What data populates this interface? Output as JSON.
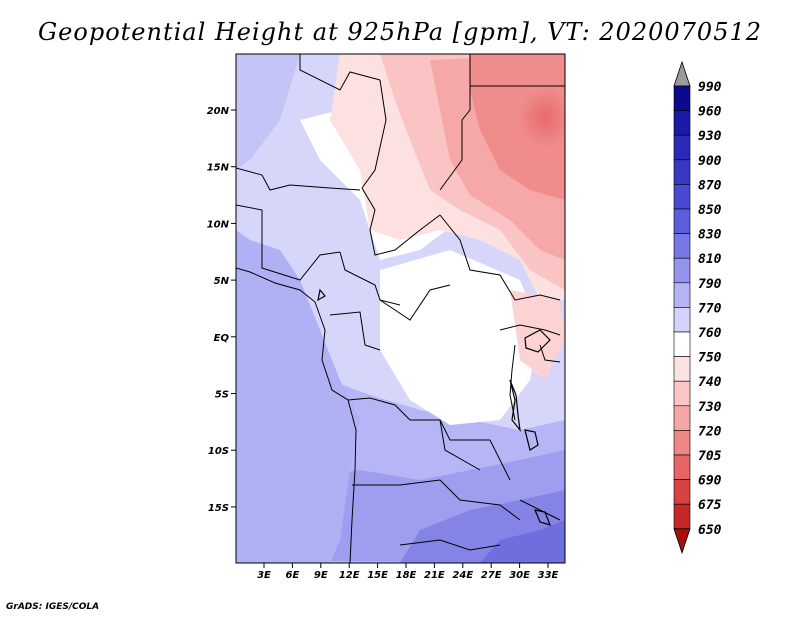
{
  "title": "Geopotential Height at 925hPa [gpm], VT: 2020070512",
  "credit": "GrADS: IGES/COLA",
  "lat_ticks": [
    "20N",
    "15N",
    "10N",
    "5N",
    "EQ",
    "5S",
    "10S",
    "15S"
  ],
  "lon_ticks": [
    "3E",
    "6E",
    "9E",
    "12E",
    "15E",
    "18E",
    "21E",
    "24E",
    "27E",
    "30E",
    "33E"
  ],
  "colorbar": {
    "labels": [
      "990",
      "960",
      "930",
      "900",
      "870",
      "850",
      "830",
      "810",
      "790",
      "770",
      "760",
      "750",
      "740",
      "730",
      "720",
      "705",
      "690",
      "675",
      "650"
    ],
    "colors": [
      "#0a0a8a",
      "#1a1aa6",
      "#2a2ab8",
      "#3838c4",
      "#4a4ad0",
      "#5e5edc",
      "#7676e4",
      "#9494ec",
      "#b4b4f4",
      "#d4d4fa",
      "#ffffff",
      "#fde2e2",
      "#fbc6c6",
      "#f6a6a6",
      "#ef8686",
      "#e66464",
      "#d84242",
      "#c62828",
      "#a80e0e"
    ],
    "top_arrow_color": "#9a9a9a",
    "bottom_arrow_color": "#a80e0e"
  }
}
